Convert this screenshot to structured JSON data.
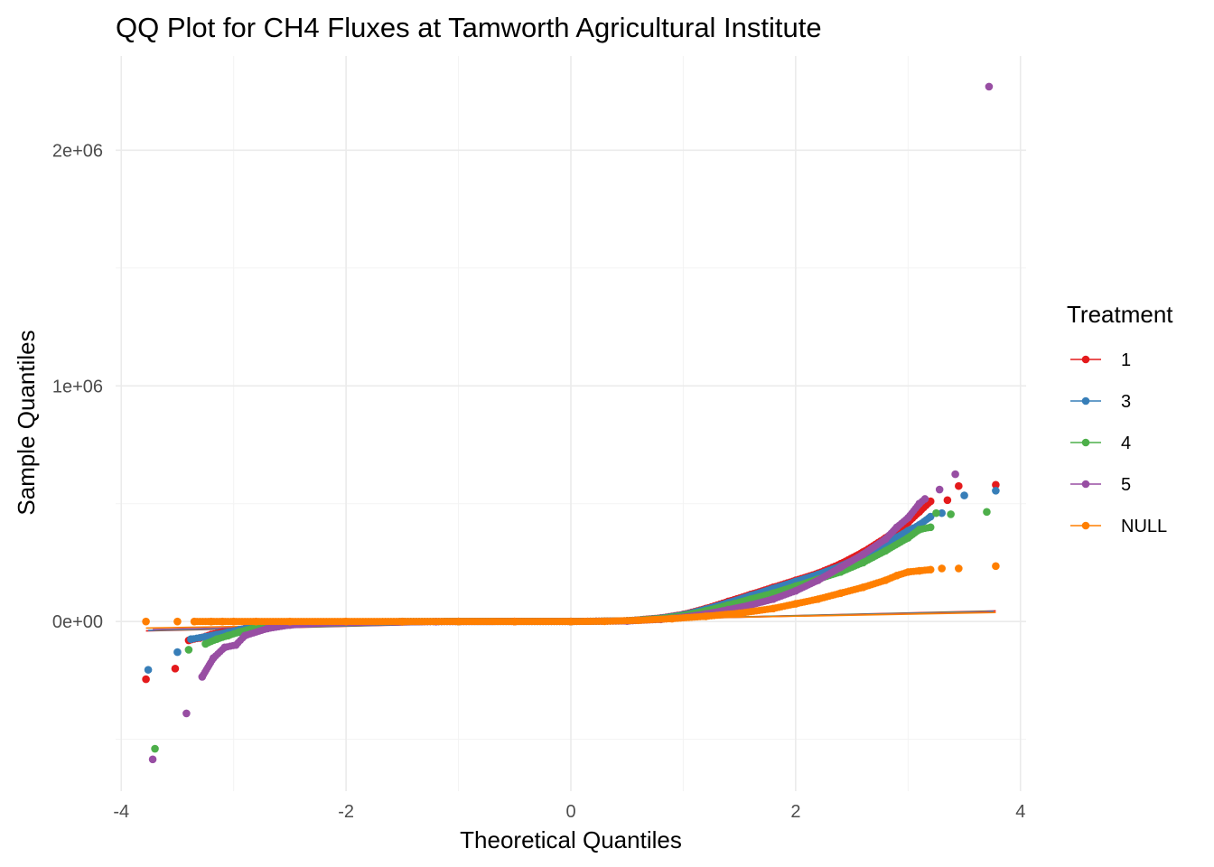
{
  "chart_data": {
    "type": "scatter",
    "title": "QQ Plot for CH4 Fluxes at Tamworth Agricultural Institute",
    "xlabel": "Theoretical Quantiles",
    "ylabel": "Sample Quantiles",
    "xlim": [
      -4.05,
      4.05
    ],
    "ylim": [
      -720000,
      2400000
    ],
    "x_ticks": [
      -4,
      -2,
      0,
      2,
      4
    ],
    "x_tick_labels": [
      "-4",
      "-2",
      "0",
      "2",
      "4"
    ],
    "y_ticks": [
      0,
      1000000,
      2000000
    ],
    "y_tick_labels": [
      "0e+00",
      "1e+06",
      "2e+06"
    ],
    "grid": true,
    "legend": {
      "title": "Treatment",
      "position": "right"
    },
    "series": [
      {
        "name": "1",
        "color": "#e41a1c",
        "points": [
          [
            -3.78,
            -245000
          ],
          [
            -3.52,
            -200000
          ],
          [
            -3.4,
            -80000
          ],
          [
            -3.3,
            -70000
          ],
          [
            -3.2,
            -55000
          ],
          [
            -3.1,
            -45000
          ],
          [
            -3.0,
            -40000
          ],
          [
            -2.9,
            -30000
          ],
          [
            -2.8,
            -20000
          ],
          [
            -2.6,
            -10000
          ],
          [
            -2.3,
            -5000
          ],
          [
            -2.0,
            -2000
          ],
          [
            -1.5,
            -500
          ],
          [
            -1.0,
            0
          ],
          [
            -0.5,
            0
          ],
          [
            0,
            0
          ],
          [
            0.5,
            3000
          ],
          [
            0.8,
            15000
          ],
          [
            1.0,
            30000
          ],
          [
            1.2,
            55000
          ],
          [
            1.4,
            85000
          ],
          [
            1.6,
            115000
          ],
          [
            1.8,
            145000
          ],
          [
            2.0,
            175000
          ],
          [
            2.2,
            205000
          ],
          [
            2.4,
            245000
          ],
          [
            2.6,
            295000
          ],
          [
            2.8,
            355000
          ],
          [
            3.0,
            420000
          ],
          [
            3.1,
            465000
          ],
          [
            3.2,
            510000
          ],
          [
            3.35,
            515000
          ],
          [
            3.45,
            575000
          ],
          [
            3.78,
            580000
          ]
        ],
        "ref_line": [
          [
            -3.78,
            -40000
          ],
          [
            3.78,
            45000
          ]
        ]
      },
      {
        "name": "3",
        "color": "#377eb8",
        "points": [
          [
            -3.76,
            -205000
          ],
          [
            -3.5,
            -130000
          ],
          [
            -3.38,
            -75000
          ],
          [
            -3.25,
            -65000
          ],
          [
            -3.15,
            -55000
          ],
          [
            -3.05,
            -45000
          ],
          [
            -2.95,
            -35000
          ],
          [
            -2.8,
            -20000
          ],
          [
            -2.6,
            -10000
          ],
          [
            -2.3,
            -5000
          ],
          [
            -2.0,
            -2000
          ],
          [
            -1.5,
            -500
          ],
          [
            -1.0,
            0
          ],
          [
            0,
            0
          ],
          [
            0.5,
            3000
          ],
          [
            0.8,
            14000
          ],
          [
            1.0,
            28000
          ],
          [
            1.2,
            52000
          ],
          [
            1.4,
            80000
          ],
          [
            1.6,
            110000
          ],
          [
            1.8,
            140000
          ],
          [
            2.0,
            170000
          ],
          [
            2.2,
            200000
          ],
          [
            2.4,
            235000
          ],
          [
            2.6,
            280000
          ],
          [
            2.8,
            330000
          ],
          [
            3.0,
            385000
          ],
          [
            3.1,
            410000
          ],
          [
            3.2,
            445000
          ],
          [
            3.3,
            460000
          ],
          [
            3.5,
            535000
          ],
          [
            3.78,
            555000
          ]
        ],
        "ref_line": [
          [
            -3.76,
            -38000
          ],
          [
            3.76,
            43000
          ]
        ]
      },
      {
        "name": "4",
        "color": "#4daf4a",
        "points": [
          [
            -3.7,
            -540000
          ],
          [
            -3.4,
            -120000
          ],
          [
            -3.25,
            -95000
          ],
          [
            -3.15,
            -75000
          ],
          [
            -3.05,
            -60000
          ],
          [
            -2.95,
            -45000
          ],
          [
            -2.8,
            -25000
          ],
          [
            -2.6,
            -12000
          ],
          [
            -2.3,
            -5000
          ],
          [
            -2.0,
            -2000
          ],
          [
            -1.5,
            -500
          ],
          [
            -1.0,
            0
          ],
          [
            0,
            0
          ],
          [
            0.5,
            2500
          ],
          [
            0.8,
            12000
          ],
          [
            1.0,
            25000
          ],
          [
            1.2,
            45000
          ],
          [
            1.4,
            70000
          ],
          [
            1.6,
            95000
          ],
          [
            1.8,
            120000
          ],
          [
            2.0,
            150000
          ],
          [
            2.2,
            180000
          ],
          [
            2.4,
            210000
          ],
          [
            2.6,
            250000
          ],
          [
            2.8,
            300000
          ],
          [
            3.0,
            355000
          ],
          [
            3.1,
            390000
          ],
          [
            3.2,
            400000
          ],
          [
            3.25,
            460000
          ],
          [
            3.38,
            455000
          ],
          [
            3.7,
            465000
          ]
        ],
        "ref_line": [
          [
            -3.7,
            -36000
          ],
          [
            3.7,
            42000
          ]
        ]
      },
      {
        "name": "5",
        "color": "#984ea3",
        "points": [
          [
            -3.72,
            -585000
          ],
          [
            -3.42,
            -390000
          ],
          [
            -3.28,
            -235000
          ],
          [
            -3.18,
            -155000
          ],
          [
            -3.08,
            -110000
          ],
          [
            -2.98,
            -100000
          ],
          [
            -2.9,
            -60000
          ],
          [
            -2.7,
            -30000
          ],
          [
            -2.5,
            -15000
          ],
          [
            -2.2,
            -6000
          ],
          [
            -1.8,
            -2000
          ],
          [
            -1.2,
            -500
          ],
          [
            -0.5,
            0
          ],
          [
            0,
            0
          ],
          [
            0.5,
            2000
          ],
          [
            0.8,
            9000
          ],
          [
            1.0,
            18000
          ],
          [
            1.2,
            32000
          ],
          [
            1.4,
            50000
          ],
          [
            1.6,
            70000
          ],
          [
            1.8,
            95000
          ],
          [
            2.0,
            130000
          ],
          [
            2.2,
            175000
          ],
          [
            2.4,
            230000
          ],
          [
            2.6,
            285000
          ],
          [
            2.8,
            350000
          ],
          [
            2.9,
            400000
          ],
          [
            3.0,
            440000
          ],
          [
            3.1,
            500000
          ],
          [
            3.15,
            520000
          ],
          [
            3.28,
            560000
          ],
          [
            3.42,
            625000
          ],
          [
            3.72,
            2270000
          ]
        ],
        "ref_line": [
          [
            -3.72,
            -34000
          ],
          [
            3.72,
            40000
          ]
        ]
      },
      {
        "name": "NULL",
        "color": "#ff7f00",
        "points": [
          [
            -3.78,
            0
          ],
          [
            -3.5,
            0
          ],
          [
            -3.35,
            0
          ],
          [
            -3.2,
            0
          ],
          [
            -3.1,
            0
          ],
          [
            -3.0,
            0
          ],
          [
            -2.8,
            0
          ],
          [
            -2.5,
            0
          ],
          [
            -2.0,
            0
          ],
          [
            -1.5,
            0
          ],
          [
            -1.0,
            0
          ],
          [
            -0.5,
            0
          ],
          [
            0,
            0
          ],
          [
            0.3,
            1000
          ],
          [
            0.6,
            5000
          ],
          [
            0.9,
            12000
          ],
          [
            1.2,
            22000
          ],
          [
            1.5,
            35000
          ],
          [
            1.8,
            55000
          ],
          [
            2.0,
            75000
          ],
          [
            2.2,
            95000
          ],
          [
            2.4,
            120000
          ],
          [
            2.6,
            145000
          ],
          [
            2.8,
            175000
          ],
          [
            2.9,
            195000
          ],
          [
            3.0,
            210000
          ],
          [
            3.1,
            215000
          ],
          [
            3.2,
            220000
          ],
          [
            3.3,
            225000
          ],
          [
            3.45,
            225000
          ],
          [
            3.78,
            235000
          ]
        ],
        "ref_line": [
          [
            -3.78,
            -28000
          ],
          [
            3.78,
            38000
          ]
        ]
      }
    ]
  }
}
